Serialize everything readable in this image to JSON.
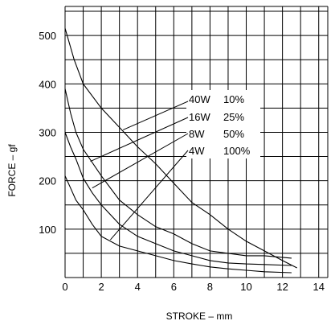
{
  "chart_data": {
    "type": "line",
    "title": "",
    "xlabel": "STROKE – mm",
    "ylabel": "FORCE – gf",
    "xlim": [
      0,
      14.5
    ],
    "ylim": [
      0,
      560
    ],
    "x_ticks": [
      0,
      2,
      4,
      6,
      8,
      10,
      12,
      14
    ],
    "y_ticks": [
      100,
      200,
      300,
      400,
      500
    ],
    "grid": true,
    "series": [
      {
        "name": "40W 10%",
        "x": [
          0,
          0.5,
          1,
          2,
          3,
          4,
          5,
          6,
          7,
          8,
          9,
          10,
          11,
          12,
          12.8
        ],
        "y": [
          515,
          450,
          400,
          350,
          310,
          270,
          235,
          195,
          155,
          130,
          100,
          75,
          55,
          35,
          20
        ]
      },
      {
        "name": "16W 25%",
        "x": [
          0,
          0.3,
          0.6,
          1,
          2,
          3,
          4,
          5,
          6,
          7,
          8,
          9,
          10,
          11,
          12.5
        ],
        "y": [
          390,
          340,
          300,
          265,
          210,
          160,
          130,
          105,
          90,
          70,
          55,
          50,
          45,
          45,
          40
        ]
      },
      {
        "name": "8W 50%",
        "x": [
          0,
          0.3,
          0.6,
          1,
          1.5,
          2,
          3,
          4,
          5,
          6,
          7,
          8,
          9,
          10,
          11,
          12.5
        ],
        "y": [
          300,
          270,
          245,
          205,
          175,
          150,
          110,
          85,
          70,
          55,
          45,
          35,
          30,
          28,
          27,
          25
        ]
      },
      {
        "name": "4W 100%",
        "x": [
          0,
          0.3,
          0.6,
          1,
          1.5,
          2,
          3,
          4,
          5,
          6,
          7,
          8,
          9,
          10,
          11,
          12.5
        ],
        "y": [
          210,
          185,
          160,
          140,
          110,
          85,
          65,
          55,
          45,
          35,
          28,
          22,
          18,
          15,
          12,
          10
        ]
      }
    ],
    "annotations": [
      {
        "text": "40W",
        "value": "10%",
        "series": "40W 10%"
      },
      {
        "text": "16W",
        "value": "25%",
        "series": "16W 25%"
      },
      {
        "text": "8W",
        "value": "50%",
        "series": "8W 50%"
      },
      {
        "text": "4W",
        "value": "100%",
        "series": "4W 100%"
      }
    ]
  }
}
